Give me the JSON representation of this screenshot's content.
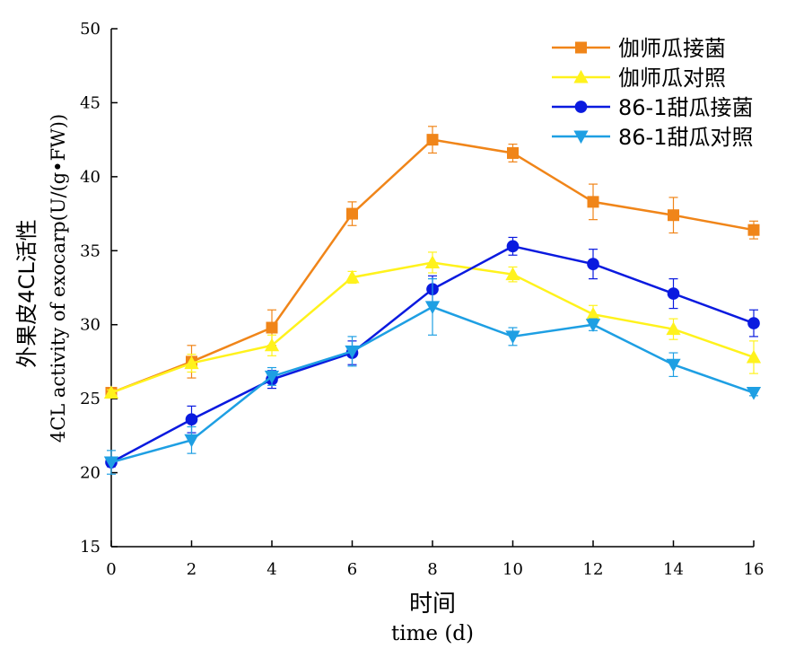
{
  "chart_data": {
    "type": "line",
    "x": [
      0,
      2,
      4,
      6,
      8,
      10,
      12,
      14,
      16
    ],
    "xlim": [
      0,
      16
    ],
    "ylim": [
      15,
      50
    ],
    "x_ticks": [
      "0",
      "2",
      "4",
      "6",
      "8",
      "10",
      "12",
      "14",
      "16"
    ],
    "y_ticks": [
      "15",
      "20",
      "25",
      "30",
      "35",
      "40",
      "45",
      "50"
    ],
    "xlabel_cn": "时间",
    "xlabel_en": "time (d)",
    "ylabel_cn": "外果皮4CL活性",
    "ylabel_en": "4CL activity of exocarp(U/(g•FW))",
    "grid": false,
    "legend_position": "top-right",
    "series": [
      {
        "name": "伽师瓜接菌",
        "color": "#F08519",
        "marker": "square",
        "values": [
          25.4,
          27.5,
          29.8,
          37.5,
          42.5,
          41.6,
          38.3,
          37.4,
          36.4
        ],
        "errors": [
          0.2,
          1.1,
          1.2,
          0.8,
          0.9,
          0.6,
          1.2,
          1.2,
          0.6
        ]
      },
      {
        "name": "伽师瓜对照",
        "color": "#FFF21C",
        "marker": "triangle-up",
        "values": [
          25.4,
          27.4,
          28.6,
          33.2,
          34.2,
          33.4,
          30.7,
          29.7,
          27.8
        ],
        "errors": [
          0.2,
          0.6,
          0.7,
          0.4,
          0.7,
          0.5,
          0.6,
          0.7,
          1.1
        ]
      },
      {
        "name": "86-1甜瓜接菌",
        "color": "#0A1ADF",
        "marker": "circle",
        "values": [
          20.7,
          23.6,
          26.3,
          28.1,
          32.4,
          35.3,
          34.1,
          32.1,
          30.1
        ],
        "errors": [
          0.3,
          0.9,
          0.6,
          0.8,
          0.9,
          0.6,
          1.0,
          1.0,
          0.9
        ]
      },
      {
        "name": "86-1甜瓜对照",
        "color": "#1E9FE3",
        "marker": "triangle-down",
        "values": [
          20.7,
          22.2,
          26.5,
          28.2,
          31.2,
          29.2,
          30.0,
          27.3,
          25.4
        ],
        "errors": [
          0.8,
          0.9,
          0.6,
          1.0,
          1.9,
          0.6,
          0.4,
          0.8,
          0.2
        ]
      }
    ]
  }
}
